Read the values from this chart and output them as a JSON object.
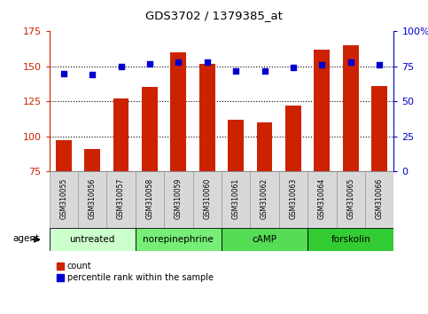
{
  "title": "GDS3702 / 1379385_at",
  "samples": [
    "GSM310055",
    "GSM310056",
    "GSM310057",
    "GSM310058",
    "GSM310059",
    "GSM310060",
    "GSM310061",
    "GSM310062",
    "GSM310063",
    "GSM310064",
    "GSM310065",
    "GSM310066"
  ],
  "counts": [
    97,
    91,
    127,
    135,
    160,
    152,
    112,
    110,
    122,
    162,
    165,
    136
  ],
  "percentiles": [
    70,
    69,
    75,
    77,
    78,
    78,
    72,
    72,
    74,
    76,
    78,
    76
  ],
  "bar_color": "#cc2200",
  "dot_color": "#0000cc",
  "ylim_left": [
    75,
    175
  ],
  "ylim_right": [
    0,
    100
  ],
  "yticks_left": [
    75,
    100,
    125,
    150,
    175
  ],
  "yticks_right": [
    0,
    25,
    50,
    75,
    100
  ],
  "ytick_labels_right": [
    "0",
    "25",
    "50",
    "75",
    "100%"
  ],
  "groups": [
    {
      "label": "untreated",
      "start": 0,
      "end": 3,
      "color": "#ccffcc"
    },
    {
      "label": "norepinephrine",
      "start": 3,
      "end": 6,
      "color": "#77ee77"
    },
    {
      "label": "cAMP",
      "start": 6,
      "end": 9,
      "color": "#55dd55"
    },
    {
      "label": "forskolin",
      "start": 9,
      "end": 12,
      "color": "#33cc33"
    }
  ],
  "agent_label": "agent",
  "legend_count_label": "count",
  "legend_pct_label": "percentile rank within the sample",
  "bar_width": 0.55,
  "grid_linestyle": "dotted",
  "grid_yticks": [
    100,
    125,
    150
  ],
  "sample_box_color": "#d8d8d8",
  "sample_box_edge": "#888888"
}
